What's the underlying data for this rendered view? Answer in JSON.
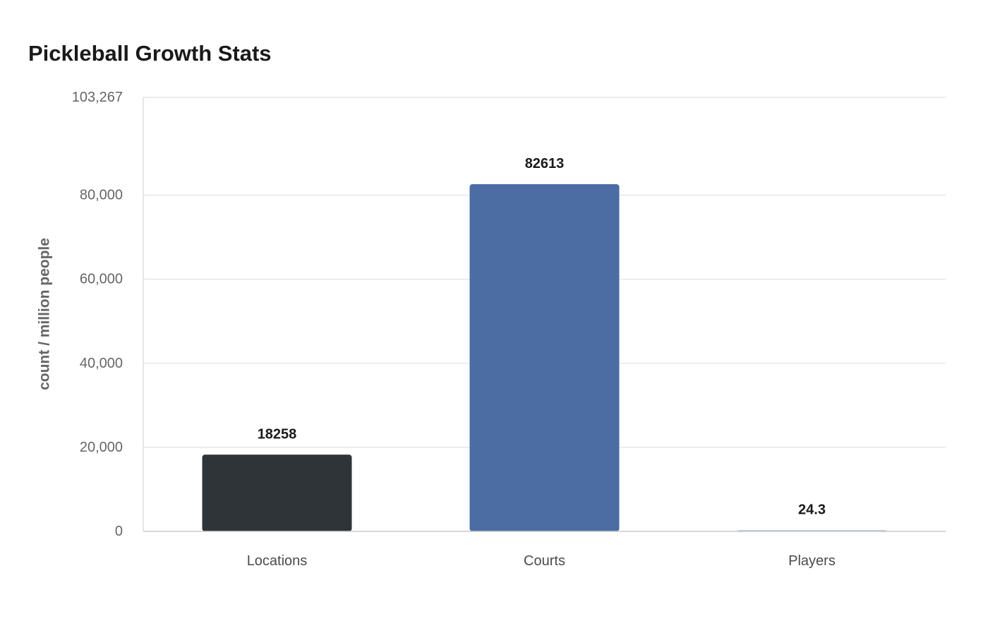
{
  "chart_data": {
    "type": "bar",
    "title": "Pickleball Growth Stats",
    "xlabel": "",
    "ylabel": "count / million people",
    "categories": [
      "Locations",
      "Courts",
      "Players"
    ],
    "values": [
      18258,
      82613,
      24.3
    ],
    "value_labels": [
      "18258",
      "82613",
      "24.3"
    ],
    "ylim": [
      0,
      103267
    ],
    "y_ticks": [
      0,
      20000,
      40000,
      60000,
      80000,
      103267
    ],
    "y_tick_labels": [
      "0",
      "20,000",
      "40,000",
      "60,000",
      "80,000",
      "103,267"
    ],
    "colors": [
      "#2e3437",
      "#4b6da3",
      "#8aa3c9"
    ],
    "grid": true,
    "legend": "none"
  }
}
